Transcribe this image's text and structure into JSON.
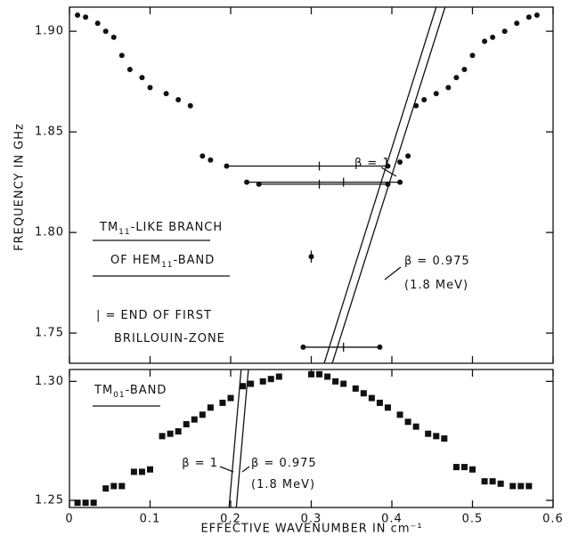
{
  "chart_data": [
    {
      "type": "scatter",
      "marker": "circle",
      "color": "#111111",
      "ylabel": "FREQUENCY IN GHz",
      "xlim": [
        0,
        0.6
      ],
      "xticks": [
        0,
        0.1,
        0.2,
        0.3,
        0.4,
        0.5,
        0.6
      ],
      "ylim": [
        1.735,
        1.912
      ],
      "yticks": [
        1.75,
        {
          "value": 1.8,
          "label": "1.80"
        },
        1.85,
        {
          "value": 1.9,
          "label": "1.90"
        }
      ],
      "x": [
        0.01,
        0.02,
        0.035,
        0.045,
        0.055,
        0.065,
        0.075,
        0.09,
        0.1,
        0.12,
        0.135,
        0.15,
        0.165,
        0.175,
        0.41,
        0.42,
        0.43,
        0.44,
        0.455,
        0.47,
        0.48,
        0.49,
        0.5,
        0.515,
        0.525,
        0.54,
        0.555,
        0.57,
        0.58
      ],
      "y": [
        1.908,
        1.907,
        1.904,
        1.9,
        1.897,
        1.888,
        1.881,
        1.877,
        1.872,
        1.869,
        1.866,
        1.863,
        1.838,
        1.836,
        1.835,
        1.838,
        1.863,
        1.866,
        1.869,
        1.872,
        1.877,
        1.881,
        1.888,
        1.895,
        1.897,
        1.9,
        1.904,
        1.907,
        1.908
      ],
      "connected": [
        {
          "x": [
            0.195,
            0.395
          ],
          "y": [
            1.833,
            1.833
          ],
          "zone_end": 0.31
        },
        {
          "x": [
            0.22,
            0.41
          ],
          "y": [
            1.825,
            1.825
          ],
          "zone_end": 0.34
        },
        {
          "x": [
            0.235,
            0.395
          ],
          "y": [
            1.824,
            1.824
          ],
          "zone_end": 0.31
        },
        {
          "x": [
            0.29,
            0.385
          ],
          "y": [
            1.743,
            1.743
          ],
          "zone_end": 0.34
        }
      ],
      "single": {
        "x": 0.3,
        "y": 1.788,
        "error": 0.003
      },
      "lines": [
        {
          "x": [
            0.316,
            0.455
          ],
          "y": [
            1.735,
            1.912
          ]
        },
        {
          "x": [
            0.326,
            0.466
          ],
          "y": [
            1.735,
            1.912
          ]
        }
      ],
      "annotations": [
        {
          "parts": [
            {
              "text": "β = 1"
            }
          ]
        },
        {
          "parts": [
            {
              "text": "β = 0.975"
            }
          ]
        },
        {
          "parts": [
            {
              "text": "(1.8 MeV)"
            }
          ]
        },
        {
          "parts": [
            {
              "text": "TM"
            },
            {
              "text": "11",
              "sub": true
            },
            {
              "text": "-LIKE BRANCH"
            }
          ]
        },
        {
          "parts": [
            {
              "text": "OF HEM"
            },
            {
              "text": "11",
              "sub": true
            },
            {
              "text": "-BAND"
            }
          ]
        },
        {
          "parts": [
            {
              "text": "| = END OF FIRST"
            }
          ]
        },
        {
          "parts": [
            {
              "text": "BRILLOUIN-ZONE"
            }
          ]
        }
      ]
    },
    {
      "type": "scatter",
      "marker": "square",
      "color": "#111111",
      "xlabel": "EFFECTIVE WAVENUMBER IN cm⁻¹",
      "xlim": [
        0,
        0.6
      ],
      "xticks": [
        0,
        0.1,
        0.2,
        0.3,
        0.4,
        0.5,
        0.6
      ],
      "ylim": [
        1.247,
        1.305
      ],
      "yticks": [
        1.25,
        {
          "value": 1.3,
          "label": "1.30"
        }
      ],
      "x": [
        0.01,
        0.02,
        0.03,
        0.045,
        0.055,
        0.065,
        0.08,
        0.09,
        0.1,
        0.115,
        0.125,
        0.135,
        0.145,
        0.155,
        0.165,
        0.175,
        0.19,
        0.2,
        0.215,
        0.225,
        0.24,
        0.25,
        0.26,
        0.3,
        0.31,
        0.32,
        0.33,
        0.34,
        0.355,
        0.365,
        0.375,
        0.385,
        0.395,
        0.41,
        0.42,
        0.43,
        0.445,
        0.455,
        0.465,
        0.48,
        0.49,
        0.5,
        0.515,
        0.525,
        0.535,
        0.55,
        0.56,
        0.57
      ],
      "y": [
        1.249,
        1.249,
        1.249,
        1.255,
        1.256,
        1.256,
        1.262,
        1.262,
        1.263,
        1.277,
        1.278,
        1.279,
        1.282,
        1.284,
        1.286,
        1.289,
        1.291,
        1.293,
        1.298,
        1.299,
        1.3,
        1.301,
        1.302,
        1.303,
        1.303,
        1.302,
        1.3,
        1.299,
        1.297,
        1.295,
        1.293,
        1.291,
        1.289,
        1.286,
        1.283,
        1.281,
        1.278,
        1.277,
        1.276,
        1.264,
        1.264,
        1.263,
        1.258,
        1.258,
        1.257,
        1.256,
        1.256,
        1.256
      ],
      "lines": [
        {
          "x": [
            0.198,
            0.213
          ],
          "y": [
            1.247,
            1.305
          ]
        },
        {
          "x": [
            0.207,
            0.222
          ],
          "y": [
            1.247,
            1.305
          ]
        }
      ],
      "annotations": [
        {
          "parts": [
            {
              "text": "TM"
            },
            {
              "text": "01",
              "sub": true
            },
            {
              "text": "-BAND"
            }
          ]
        },
        {
          "parts": [
            {
              "text": "β = 1"
            }
          ]
        },
        {
          "parts": [
            {
              "text": "β = 0.975"
            }
          ]
        },
        {
          "parts": [
            {
              "text": "(1.8 MeV)"
            }
          ]
        }
      ]
    }
  ]
}
